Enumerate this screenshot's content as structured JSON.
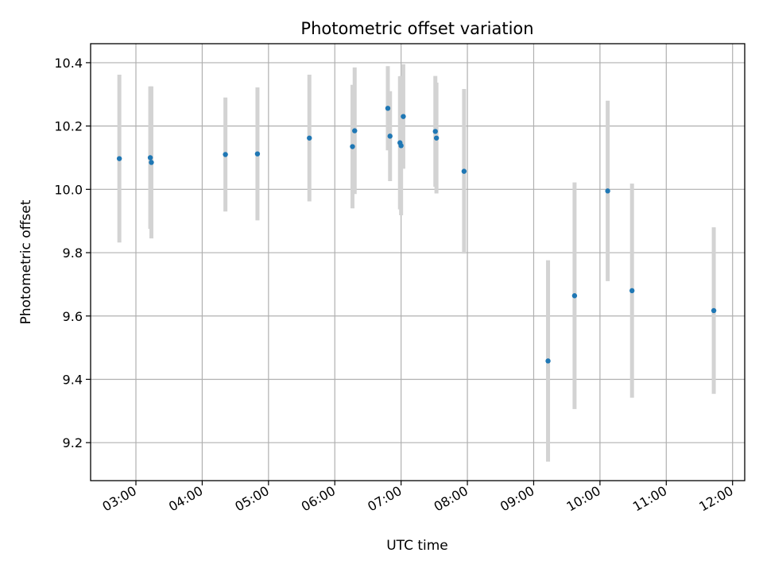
{
  "chart_data": {
    "type": "scatter",
    "title": "Photometric offset variation",
    "xlabel": "UTC time",
    "ylabel": "Photometric offset",
    "x_axis_type": "time",
    "x_tick_labels": [
      "03:00",
      "04:00",
      "05:00",
      "06:00",
      "07:00",
      "08:00",
      "09:00",
      "10:00",
      "11:00",
      "12:00"
    ],
    "xlim": [
      "02:19",
      "12:11"
    ],
    "y_ticks": [
      9.2,
      9.4,
      9.6,
      9.8,
      10.0,
      10.2,
      10.4
    ],
    "y_tick_labels": [
      "9.2",
      "9.4",
      "9.6",
      "9.8",
      "10.0",
      "10.2",
      "10.4"
    ],
    "ylim": [
      9.08,
      10.46
    ],
    "grid": true,
    "colors": {
      "point": "#1f77b4",
      "errorbar": "#d3d3d3"
    },
    "series": [
      {
        "points": [
          {
            "x": "02:45",
            "y": 10.097,
            "err": 0.265
          },
          {
            "x": "03:13",
            "y": 10.1,
            "err": 0.225
          },
          {
            "x": "03:14",
            "y": 10.085,
            "err": 0.24
          },
          {
            "x": "04:21",
            "y": 10.11,
            "err": 0.18
          },
          {
            "x": "04:50",
            "y": 10.112,
            "err": 0.21
          },
          {
            "x": "05:37",
            "y": 10.162,
            "err": 0.2
          },
          {
            "x": "06:16",
            "y": 10.135,
            "err": 0.195
          },
          {
            "x": "06:18",
            "y": 10.185,
            "err": 0.2
          },
          {
            "x": "06:48",
            "y": 10.256,
            "err": 0.133
          },
          {
            "x": "06:50",
            "y": 10.168,
            "err": 0.142
          },
          {
            "x": "06:59",
            "y": 10.147,
            "err": 0.21
          },
          {
            "x": "07:00",
            "y": 10.138,
            "err": 0.22
          },
          {
            "x": "07:02",
            "y": 10.23,
            "err": 0.165
          },
          {
            "x": "07:31",
            "y": 10.183,
            "err": 0.175
          },
          {
            "x": "07:32",
            "y": 10.162,
            "err": 0.175
          },
          {
            "x": "07:57",
            "y": 10.057,
            "err": 0.26
          },
          {
            "x": "09:13",
            "y": 9.458,
            "err": 0.318
          },
          {
            "x": "09:37",
            "y": 9.664,
            "err": 0.358
          },
          {
            "x": "10:07",
            "y": 9.995,
            "err": 0.285
          },
          {
            "x": "10:29",
            "y": 9.68,
            "err": 0.338
          },
          {
            "x": "11:43",
            "y": 9.617,
            "err": 0.263
          }
        ]
      }
    ]
  }
}
